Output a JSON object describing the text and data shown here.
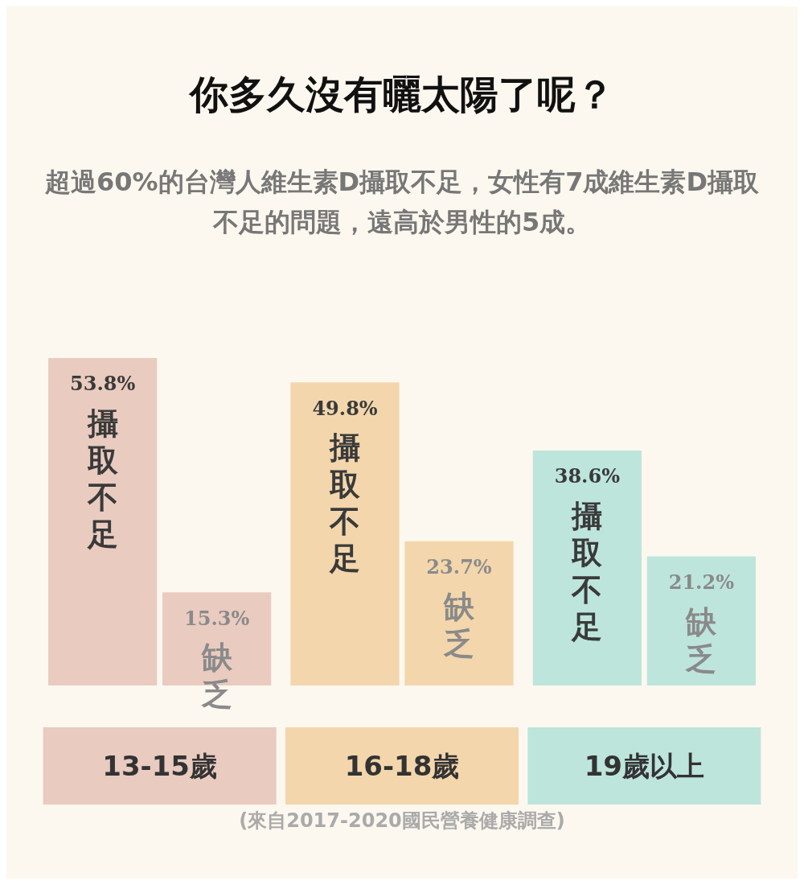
{
  "chart_data": {
    "type": "bar",
    "title": "你多久沒有曬太陽了呢？",
    "subtitle": "超過60%的台灣人維生素D攝取不足，女性有7成維生素D攝取不足的問題，遠高於男性的5成。",
    "categories": [
      "13-15歲",
      "16-18歲",
      "19歲以上"
    ],
    "series": [
      {
        "name": "攝取不足",
        "colors": [
          "#e9cbc0",
          "#f3d6ac",
          "#bde5db"
        ],
        "values": [
          53.8,
          49.8,
          38.6
        ],
        "value_labels": [
          "53.8%",
          "49.8%",
          "38.6%"
        ]
      },
      {
        "name": "缺乏",
        "colors": [
          "#e9cbc0",
          "#f3d6ac",
          "#bde5db"
        ],
        "values": [
          15.3,
          23.7,
          21.2
        ],
        "value_labels": [
          "15.3%",
          "23.7%",
          "21.2%"
        ]
      }
    ],
    "tick_labels": "x",
    "annotations": [
      "(來自2017-2020國民營養健康調查)"
    ]
  }
}
